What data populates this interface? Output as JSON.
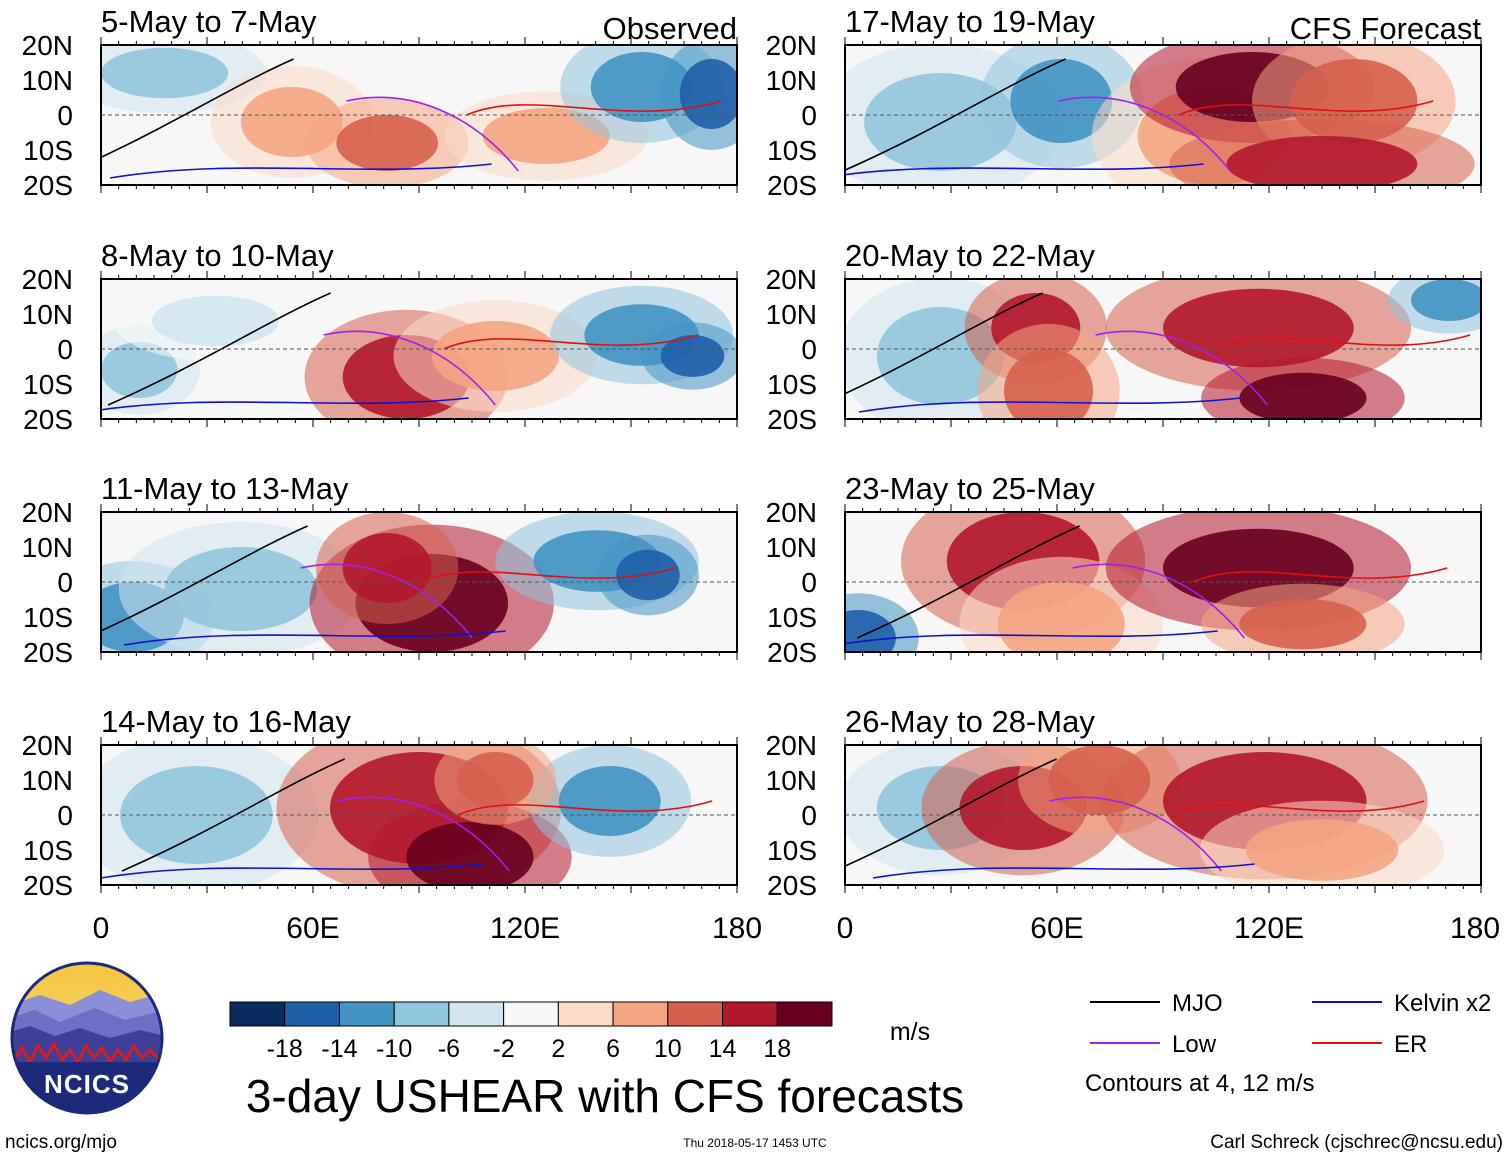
{
  "panels": [
    {
      "title": "5-May to 7-May",
      "tag": "Observed"
    },
    {
      "title": "8-May to 10-May",
      "tag": ""
    },
    {
      "title": "11-May to 13-May",
      "tag": ""
    },
    {
      "title": "14-May to 16-May",
      "tag": ""
    },
    {
      "title": "17-May to 19-May",
      "tag": "CFS Forecast"
    },
    {
      "title": "20-May to 22-May",
      "tag": ""
    },
    {
      "title": "23-May to 25-May",
      "tag": ""
    },
    {
      "title": "26-May to 28-May",
      "tag": ""
    }
  ],
  "lat_labels": [
    "20N",
    "10N",
    "0",
    "10S",
    "20S"
  ],
  "lon_labels": [
    "0",
    "60E",
    "120E",
    "180"
  ],
  "colorbar": {
    "ticks": [
      "-18",
      "-14",
      "-10",
      "-6",
      "-2",
      "2",
      "6",
      "10",
      "14",
      "18"
    ],
    "units": "m/s",
    "colors": [
      "#0b2b5e",
      "#1f5fa8",
      "#4393c3",
      "#92c5de",
      "#d1e5f0",
      "#f7f7f7",
      "#fddbc7",
      "#f4a582",
      "#d6604d",
      "#b2182b",
      "#67001f"
    ]
  },
  "legend": {
    "items": [
      {
        "label": "MJO",
        "color": "#000000"
      },
      {
        "label": "Kelvin x2",
        "color": "#1010d0"
      },
      {
        "label": "Low",
        "color": "#a020f0"
      },
      {
        "label": "ER",
        "color": "#e01010"
      }
    ],
    "note": "Contours at 4, 12 m/s"
  },
  "main_title": "3-day USHEAR with CFS forecasts",
  "logo_text": "NCICS",
  "footer": {
    "left": "ncics.org/mjo",
    "center": "Thu 2018-05-17 1453 UTC",
    "right": "Carl Schreck (cjschrec@ncsu.edu)"
  }
}
